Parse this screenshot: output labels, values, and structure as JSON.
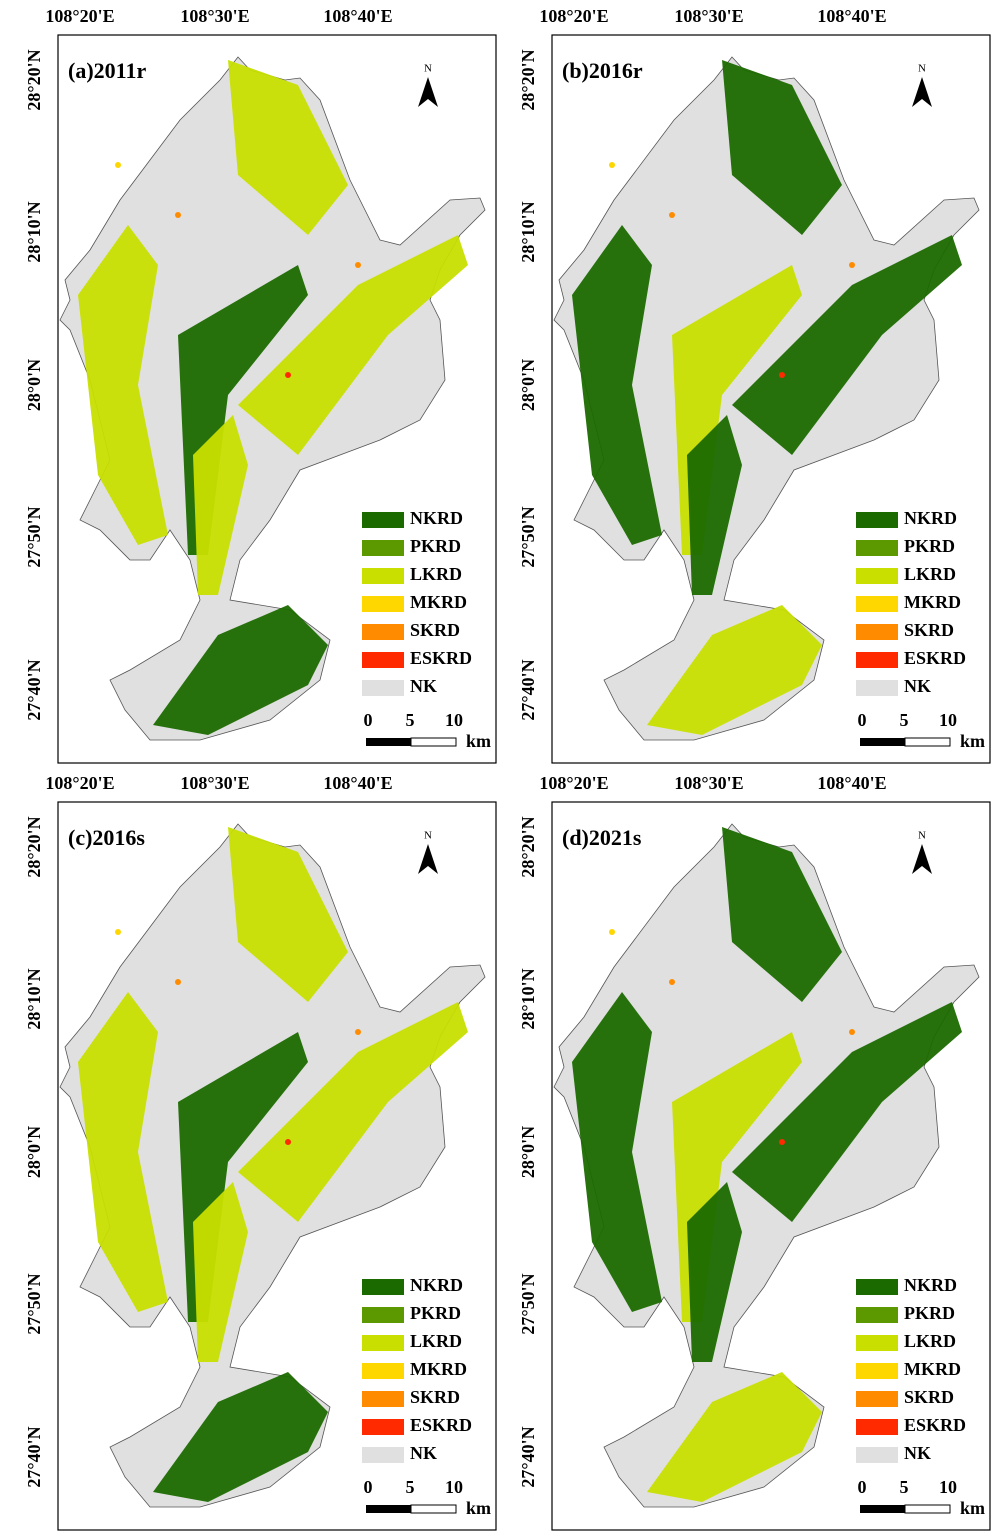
{
  "panels": [
    {
      "title": "(a)2011r"
    },
    {
      "title": "(b)2016r"
    },
    {
      "title": "(c)2016s"
    },
    {
      "title": "(d)2021s"
    }
  ],
  "lon_labels": [
    "108°20'E",
    "108°30'E",
    "108°40'E"
  ],
  "lat_labels": [
    "28°20'N",
    "28°10'N",
    "28°0'N",
    "27°50'N",
    "27°40'N"
  ],
  "north": "N",
  "legend": [
    {
      "label": "NKRD",
      "color": "#1b6a00"
    },
    {
      "label": "PKRD",
      "color": "#5c9800"
    },
    {
      "label": "LKRD",
      "color": "#c8df00"
    },
    {
      "label": "MKRD",
      "color": "#ffd700"
    },
    {
      "label": "SKRD",
      "color": "#ff8c00"
    },
    {
      "label": "ESKRD",
      "color": "#ff2a00"
    },
    {
      "label": "NK",
      "color": "#e0e0e0"
    }
  ],
  "scale": {
    "ticks": [
      "0",
      "5",
      "10"
    ],
    "unit": "km"
  }
}
